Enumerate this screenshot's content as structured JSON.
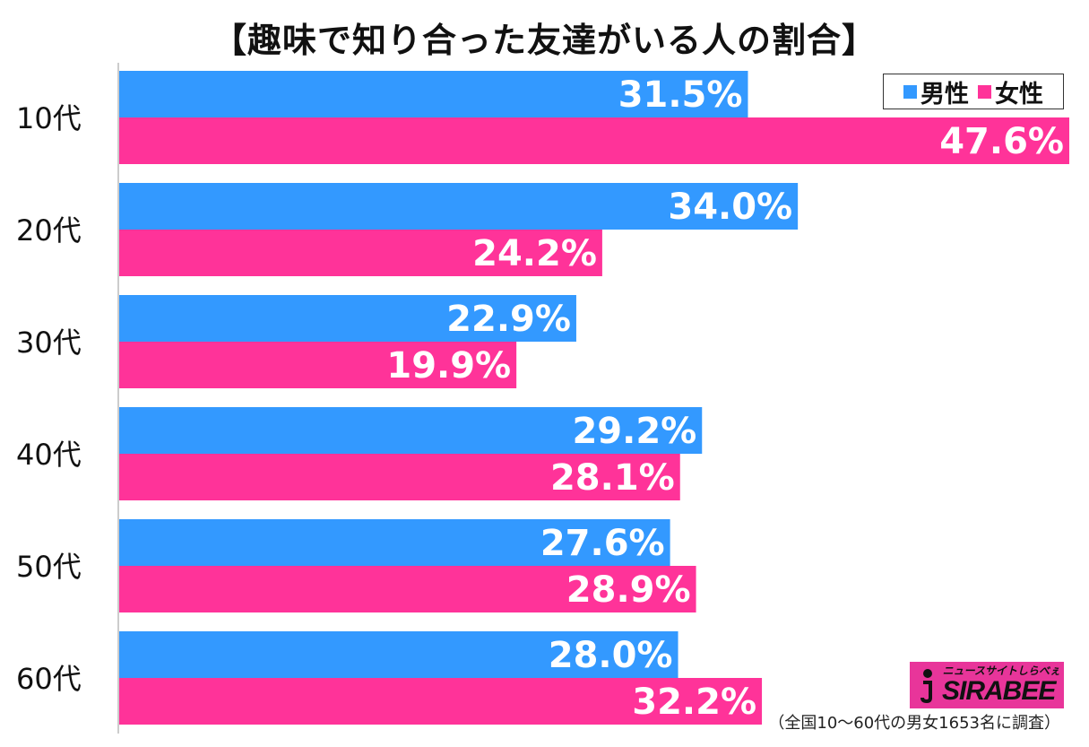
{
  "chart_data": {
    "type": "bar",
    "orientation": "horizontal",
    "title": "【趣味で知り合った友達がいる人の割合】",
    "categories": [
      "10代",
      "20代",
      "30代",
      "40代",
      "50代",
      "60代"
    ],
    "series": [
      {
        "name": "男性",
        "color": "#3399ff",
        "values": [
          31.5,
          34.0,
          22.9,
          29.2,
          27.6,
          28.0
        ],
        "labels": [
          "31.5%",
          "34.0%",
          "22.9%",
          "29.2%",
          "27.6%",
          "28.0%"
        ]
      },
      {
        "name": "女性",
        "color": "#ff3399",
        "values": [
          47.6,
          24.2,
          19.9,
          28.1,
          28.9,
          32.2
        ],
        "labels": [
          "47.6%",
          "24.2%",
          "19.9%",
          "28.1%",
          "28.9%",
          "32.2%"
        ]
      }
    ],
    "xlim": [
      0,
      47.6
    ],
    "grid": false,
    "legend_position": "top-right",
    "source_note": "（全国10～60代の男女1653名に調査）"
  },
  "logo": {
    "tagline": "ニュースサイトしらべぇ",
    "wordmark": "SIRABEE",
    "color": "#e8359a"
  }
}
